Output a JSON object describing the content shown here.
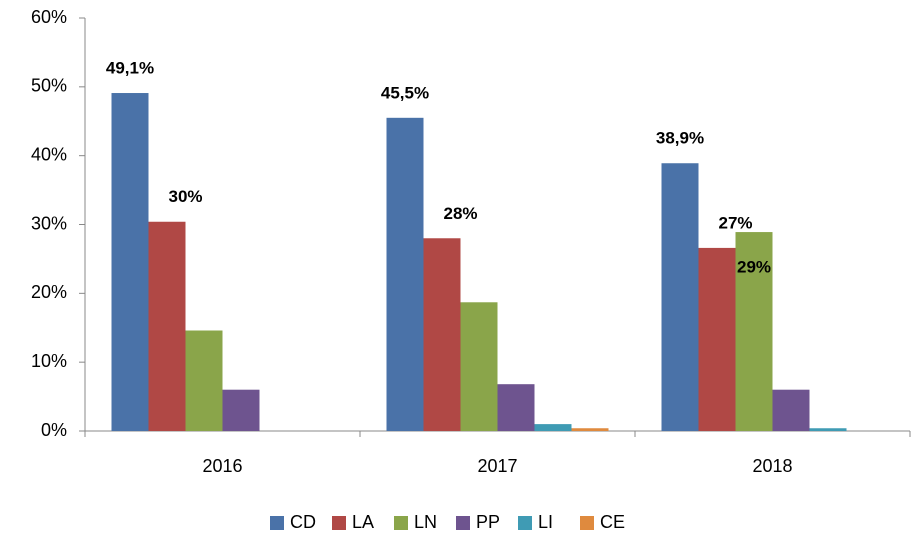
{
  "chart_data": {
    "type": "bar",
    "categories": [
      "2016",
      "2017",
      "2018"
    ],
    "series": [
      {
        "name": "CD",
        "color": "#4a72a8",
        "values": [
          49.1,
          45.5,
          38.9
        ],
        "value_labels": [
          "49,1%",
          "45,5%",
          "38,9%"
        ]
      },
      {
        "name": "LA",
        "color": "#b04845",
        "values": [
          30.4,
          28,
          26.6
        ],
        "value_labels": [
          "30%",
          "28%",
          "27%"
        ]
      },
      {
        "name": "LN",
        "color": "#8aa54a",
        "values": [
          14.6,
          18.7,
          28.9
        ],
        "value_labels": [
          null,
          null,
          "29%"
        ]
      },
      {
        "name": "PP",
        "color": "#6e548f",
        "values": [
          6,
          6.8,
          6
        ]
      },
      {
        "name": "LI",
        "color": "#3f9bb4",
        "values": [
          0,
          1,
          0.4
        ]
      },
      {
        "name": "CE",
        "color": "#df8a3e",
        "values": [
          0,
          0.4,
          0
        ]
      }
    ],
    "ylim": [
      0,
      60
    ],
    "yticks": [
      {
        "value": 0,
        "label": "0%"
      },
      {
        "value": 10,
        "label": "10%"
      },
      {
        "value": 20,
        "label": "20%"
      },
      {
        "value": 30,
        "label": "30%"
      },
      {
        "value": 40,
        "label": "40%"
      },
      {
        "value": 50,
        "label": "50%"
      },
      {
        "value": 60,
        "label": "60%"
      }
    ],
    "grid": false,
    "legend": "bottom"
  }
}
